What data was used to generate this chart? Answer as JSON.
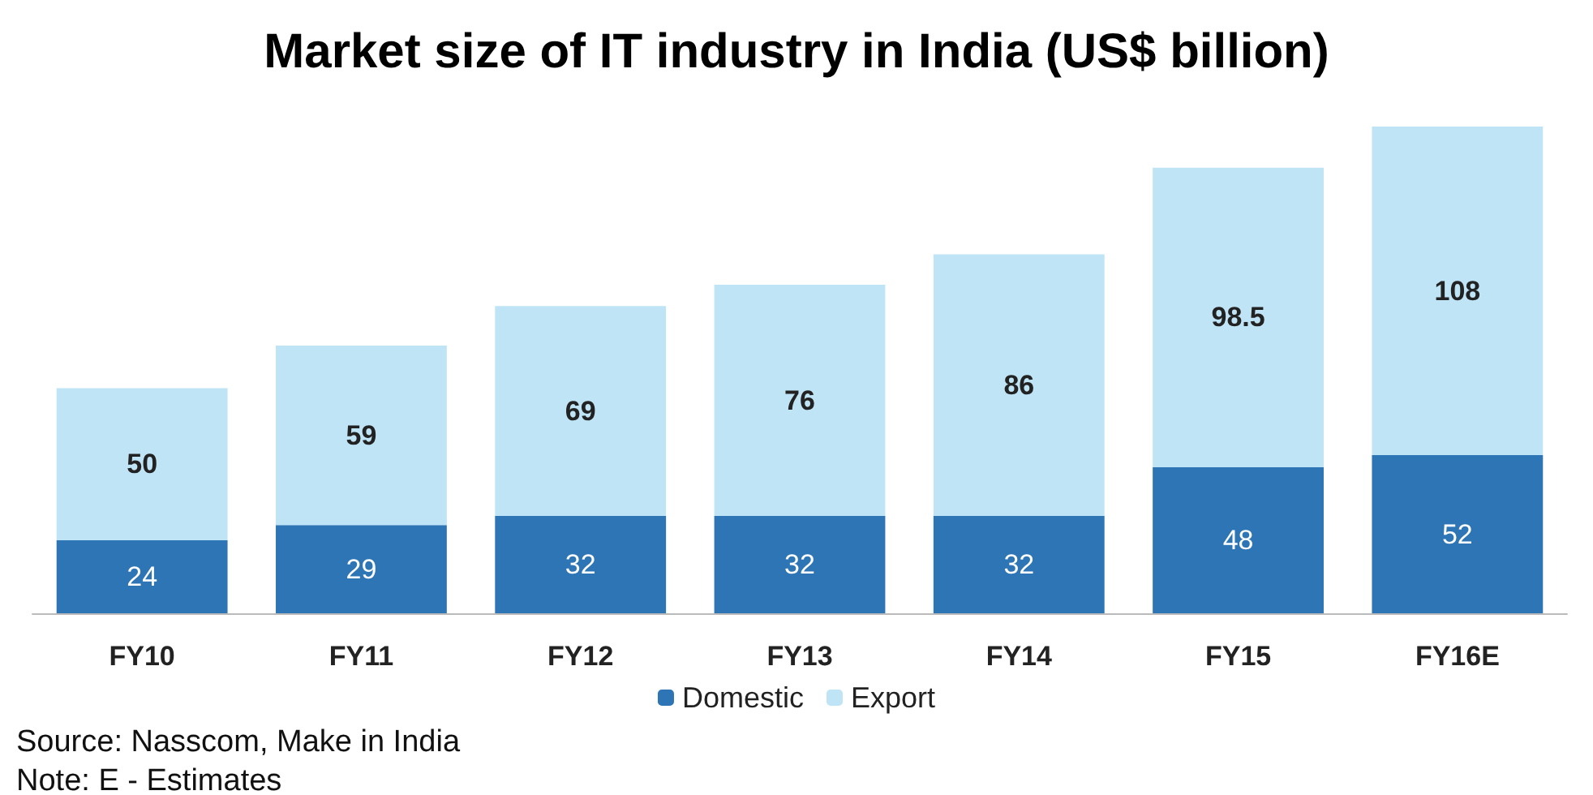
{
  "chart_data": {
    "type": "bar",
    "title": "Market size of IT industry in India (US$ billion)",
    "categories": [
      "FY10",
      "FY11",
      "FY12",
      "FY13",
      "FY14",
      "FY15",
      "FY16E"
    ],
    "stacked": true,
    "series": [
      {
        "name": "Domestic",
        "color": "#2e75b6",
        "values": [
          24,
          29,
          32,
          32,
          32,
          48,
          52
        ]
      },
      {
        "name": "Export",
        "color": "#bfe4f6",
        "values": [
          50,
          59,
          69,
          76,
          86,
          98.5,
          108
        ]
      }
    ],
    "data_labels": true,
    "legend": "bottom",
    "grid": false,
    "annotations": [
      "Source: Nasscom, Make in India",
      "Note: E - Estimates"
    ]
  }
}
